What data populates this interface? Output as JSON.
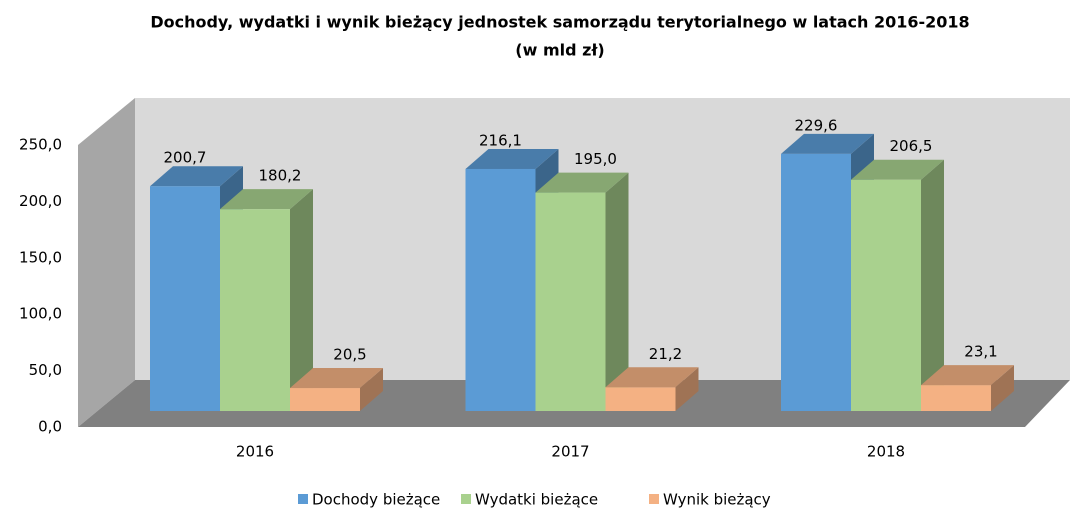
{
  "chart_data": {
    "type": "bar3d",
    "title": "Dochody, wydatki i wynik bieżący jednostek samorządu terytorialnego w latach 2016-2018",
    "subtitle": "(w mld zł)",
    "categories": [
      "2016",
      "2017",
      "2018"
    ],
    "series": [
      {
        "name": "Dochody bieżące",
        "color": "#5b9bd5",
        "values": [
          200.7,
          216.1,
          229.6
        ],
        "value_labels": [
          "200,7",
          "216,1",
          "229,6"
        ]
      },
      {
        "name": "Wydatki bieżące",
        "color": "#a9d18e",
        "values": [
          180.2,
          195.0,
          206.5
        ],
        "value_labels": [
          "180,2",
          "195,0",
          "206,5"
        ]
      },
      {
        "name": "Wynik bieżący",
        "color": "#f4b183",
        "values": [
          20.5,
          21.2,
          23.1
        ],
        "value_labels": [
          "20,5",
          "21,2",
          "23,1"
        ]
      }
    ],
    "ylim": [
      0,
      250
    ],
    "yticks": [
      {
        "value": 0,
        "label": "0,0"
      },
      {
        "value": 50,
        "label": "50,0"
      },
      {
        "value": 100,
        "label": "100,0"
      },
      {
        "value": 150,
        "label": "150,0"
      },
      {
        "value": 200,
        "label": "200,0"
      },
      {
        "value": 250,
        "label": "250,0"
      }
    ],
    "legend": "bottom"
  }
}
